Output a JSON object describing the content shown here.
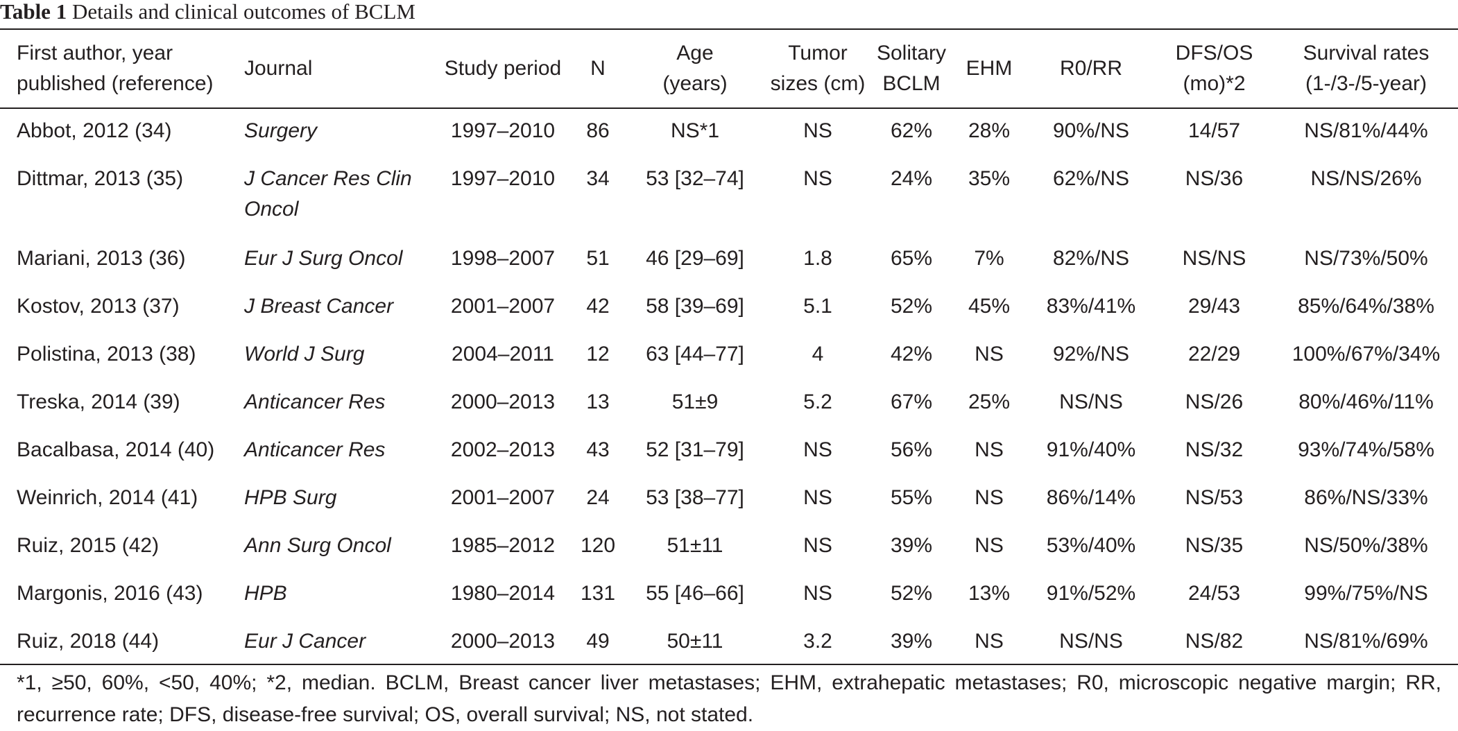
{
  "caption": {
    "label": "Table 1",
    "title": "Details and clinical outcomes of BCLM"
  },
  "headers": {
    "author": [
      "First author, year",
      "published (reference)"
    ],
    "journal": "Journal",
    "period": "Study period",
    "n": "N",
    "age": [
      "Age",
      "(years)"
    ],
    "tumor": [
      "Tumor",
      "sizes (cm)"
    ],
    "solitary": [
      "Solitary",
      "BCLM"
    ],
    "ehm": "EHM",
    "r0rr": "R0/RR",
    "dfsos": [
      "DFS/OS",
      "(mo)*2"
    ],
    "survival": [
      "Survival rates",
      "(1-/3-/5-year)"
    ]
  },
  "rows": [
    {
      "author": "Abbot, 2012 (34)",
      "journal": "Surgery",
      "period": "1997–2010",
      "n": "86",
      "age": "NS*1",
      "tumor": "NS",
      "solitary": "62%",
      "ehm": "28%",
      "r0rr": "90%/NS",
      "dfsos": "14/57",
      "survival": "NS/81%/44%"
    },
    {
      "author": "Dittmar, 2013 (35)",
      "journal": "J Cancer Res Clin Oncol",
      "period": "1997–2010",
      "n": "34",
      "age": "53 [32–74]",
      "tumor": "NS",
      "solitary": "24%",
      "ehm": "35%",
      "r0rr": "62%/NS",
      "dfsos": "NS/36",
      "survival": "NS/NS/26%"
    },
    {
      "author": "Mariani, 2013 (36)",
      "journal": "Eur J Surg Oncol",
      "period": "1998–2007",
      "n": "51",
      "age": "46 [29–69]",
      "tumor": "1.8",
      "solitary": "65%",
      "ehm": "7%",
      "r0rr": "82%/NS",
      "dfsos": "NS/NS",
      "survival": "NS/73%/50%"
    },
    {
      "author": "Kostov, 2013 (37)",
      "journal": "J Breast Cancer",
      "period": "2001–2007",
      "n": "42",
      "age": "58 [39–69]",
      "tumor": "5.1",
      "solitary": "52%",
      "ehm": "45%",
      "r0rr": "83%/41%",
      "dfsos": "29/43",
      "survival": "85%/64%/38%"
    },
    {
      "author": "Polistina, 2013 (38)",
      "journal": "World J Surg",
      "period": "2004–2011",
      "n": "12",
      "age": "63 [44–77]",
      "tumor": "4",
      "solitary": "42%",
      "ehm": "NS",
      "r0rr": "92%/NS",
      "dfsos": "22/29",
      "survival": "100%/67%/34%"
    },
    {
      "author": "Treska, 2014 (39)",
      "journal": "Anticancer Res",
      "period": "2000–2013",
      "n": "13",
      "age": "51±9",
      "tumor": "5.2",
      "solitary": "67%",
      "ehm": "25%",
      "r0rr": "NS/NS",
      "dfsos": "NS/26",
      "survival": "80%/46%/11%"
    },
    {
      "author": "Bacalbasa, 2014 (40)",
      "journal": "Anticancer Res",
      "period": "2002–2013",
      "n": "43",
      "age": "52 [31–79]",
      "tumor": "NS",
      "solitary": "56%",
      "ehm": "NS",
      "r0rr": "91%/40%",
      "dfsos": "NS/32",
      "survival": "93%/74%/58%"
    },
    {
      "author": "Weinrich, 2014 (41)",
      "journal": "HPB Surg",
      "period": "2001–2007",
      "n": "24",
      "age": "53 [38–77]",
      "tumor": "NS",
      "solitary": "55%",
      "ehm": "NS",
      "r0rr": "86%/14%",
      "dfsos": "NS/53",
      "survival": "86%/NS/33%"
    },
    {
      "author": "Ruiz, 2015 (42)",
      "journal": "Ann Surg Oncol",
      "period": "1985–2012",
      "n": "120",
      "age": "51±11",
      "tumor": "NS",
      "solitary": "39%",
      "ehm": "NS",
      "r0rr": "53%/40%",
      "dfsos": "NS/35",
      "survival": "NS/50%/38%"
    },
    {
      "author": "Margonis, 2016 (43)",
      "journal": "HPB",
      "period": "1980–2014",
      "n": "131",
      "age": "55 [46–66]",
      "tumor": "NS",
      "solitary": "52%",
      "ehm": "13%",
      "r0rr": "91%/52%",
      "dfsos": "24/53",
      "survival": "99%/75%/NS"
    },
    {
      "author": "Ruiz, 2018 (44)",
      "journal": "Eur J Cancer",
      "period": "2000–2013",
      "n": "49",
      "age": "50±11",
      "tumor": "3.2",
      "solitary": "39%",
      "ehm": "NS",
      "r0rr": "NS/NS",
      "dfsos": "NS/82",
      "survival": "NS/81%/69%"
    }
  ],
  "footnote": "*1, ≥50, 60%, <50, 40%; *2, median. BCLM, Breast cancer liver metastases; EHM, extrahepatic metastases; R0, microscopic negative margin; RR, recurrence rate; DFS, disease-free survival; OS, overall survival; NS, not stated."
}
